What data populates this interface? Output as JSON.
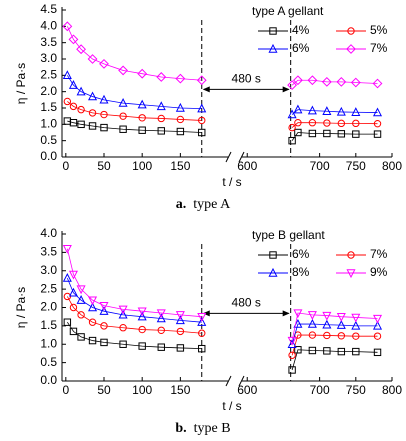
{
  "chart_data": [
    {
      "type": "line",
      "caption_label": "a.",
      "caption": "type A",
      "y_label": "η / Pa·s",
      "x_label": "t / s",
      "legend_title": "type A gellant",
      "annotation": "480 s",
      "xlim": [
        -5,
        800
      ],
      "xbreak": [
        215,
        590
      ],
      "vlines": [
        178,
        660
      ],
      "xticks": [
        0,
        50,
        100,
        150,
        600,
        700,
        750,
        800
      ],
      "ylim": [
        0,
        4.5
      ],
      "yticks": [
        {
          "value": 0,
          "label": "0.0"
        },
        0.5,
        {
          "value": 1,
          "label": "1.0"
        },
        1.5,
        {
          "value": 2,
          "label": "2.0"
        },
        2.5,
        {
          "value": 3,
          "label": "3.0"
        },
        3.5,
        {
          "value": 4,
          "label": "4.0"
        },
        4.5
      ],
      "x": [
        2,
        10,
        20,
        35,
        50,
        75,
        100,
        125,
        150,
        178,
        662,
        670,
        690,
        710,
        730,
        750,
        780
      ],
      "series": [
        {
          "name": "4%",
          "color": "#000000",
          "marker": "square",
          "values": [
            1.1,
            1.05,
            1.0,
            0.95,
            0.9,
            0.85,
            0.82,
            0.8,
            0.78,
            0.75,
            0.5,
            0.75,
            0.72,
            0.72,
            0.71,
            0.7,
            0.7
          ]
        },
        {
          "name": "5%",
          "color": "#ff0000",
          "marker": "circle",
          "values": [
            1.7,
            1.55,
            1.45,
            1.35,
            1.3,
            1.25,
            1.2,
            1.18,
            1.15,
            1.12,
            0.9,
            1.05,
            1.05,
            1.04,
            1.03,
            1.03,
            1.02
          ]
        },
        {
          "name": "6%",
          "color": "#0000ff",
          "marker": "triangle",
          "values": [
            2.5,
            2.2,
            2.0,
            1.85,
            1.75,
            1.65,
            1.6,
            1.55,
            1.5,
            1.48,
            1.3,
            1.45,
            1.42,
            1.4,
            1.38,
            1.37,
            1.36
          ]
        },
        {
          "name": "7%",
          "color": "#ff00ff",
          "marker": "diamond",
          "values": [
            4.0,
            3.6,
            3.3,
            3.0,
            2.85,
            2.65,
            2.55,
            2.45,
            2.4,
            2.35,
            2.2,
            2.35,
            2.35,
            2.3,
            2.3,
            2.28,
            2.25
          ]
        }
      ]
    },
    {
      "type": "line",
      "caption_label": "b.",
      "caption": "type B",
      "y_label": "η / Pa·s",
      "x_label": "t / s",
      "legend_title": "type B gellant",
      "annotation": "480 s",
      "xlim": [
        -5,
        800
      ],
      "xbreak": [
        215,
        590
      ],
      "vlines": [
        178,
        660
      ],
      "xticks": [
        0,
        50,
        100,
        150,
        600,
        700,
        750,
        800
      ],
      "ylim": [
        0,
        4
      ],
      "yticks": [
        {
          "value": 0,
          "label": "0.0"
        },
        0.5,
        {
          "value": 1,
          "label": "1.0"
        },
        1.5,
        {
          "value": 2,
          "label": "2.0"
        },
        2.5,
        {
          "value": 3,
          "label": "3.0"
        },
        3.5,
        {
          "value": 4,
          "label": "4.0"
        }
      ],
      "x": [
        2,
        10,
        20,
        35,
        50,
        75,
        100,
        125,
        150,
        178,
        662,
        670,
        690,
        710,
        730,
        750,
        780
      ],
      "series": [
        {
          "name": "6%",
          "color": "#000000",
          "marker": "square",
          "values": [
            1.6,
            1.35,
            1.2,
            1.1,
            1.05,
            1.0,
            0.95,
            0.92,
            0.9,
            0.88,
            0.3,
            0.85,
            0.83,
            0.82,
            0.8,
            0.8,
            0.78
          ]
        },
        {
          "name": "7%",
          "color": "#ff0000",
          "marker": "circle",
          "values": [
            2.3,
            2.0,
            1.8,
            1.6,
            1.5,
            1.45,
            1.4,
            1.38,
            1.35,
            1.3,
            0.7,
            1.25,
            1.25,
            1.24,
            1.23,
            1.22,
            1.22
          ]
        },
        {
          "name": "8%",
          "color": "#0000ff",
          "marker": "triangle",
          "values": [
            2.8,
            2.4,
            2.2,
            2.0,
            1.9,
            1.8,
            1.75,
            1.7,
            1.65,
            1.6,
            1.0,
            1.55,
            1.55,
            1.53,
            1.52,
            1.5,
            1.5
          ]
        },
        {
          "name": "9%",
          "color": "#ff00ff",
          "marker": "triangle-down",
          "values": [
            3.6,
            2.9,
            2.5,
            2.2,
            2.05,
            1.95,
            1.9,
            1.85,
            1.8,
            1.75,
            1.1,
            1.85,
            1.8,
            1.78,
            1.75,
            1.73,
            1.7
          ]
        }
      ]
    }
  ]
}
